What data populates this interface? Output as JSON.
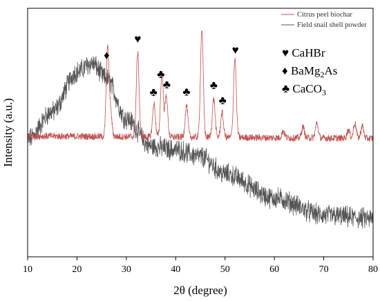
{
  "chart_data": {
    "type": "line",
    "xlabel": "2θ (degree)",
    "ylabel": "Intensity (a.u.)",
    "xlim": [
      10,
      80
    ],
    "xticks": [
      "10",
      "20",
      "30",
      "40",
      "50",
      "60",
      "70",
      "80"
    ],
    "y_ticks_shown": false,
    "series": [
      {
        "name": "Citrus peel biochar",
        "color": "#c0504d",
        "baseline": 175,
        "peaks": [
          {
            "x": 26.2,
            "height": 126
          },
          {
            "x": 26.8,
            "height": 35
          },
          {
            "x": 32.3,
            "height": 122
          },
          {
            "x": 35.6,
            "height": 48
          },
          {
            "x": 37.2,
            "height": 92
          },
          {
            "x": 38.1,
            "height": 60
          },
          {
            "x": 42.2,
            "height": 46
          },
          {
            "x": 45.3,
            "height": 157
          },
          {
            "x": 47.7,
            "height": 56
          },
          {
            "x": 49.4,
            "height": 36
          },
          {
            "x": 52.0,
            "height": 114
          },
          {
            "x": 61.8,
            "height": 10
          },
          {
            "x": 65.8,
            "height": 16
          },
          {
            "x": 68.6,
            "height": 22
          },
          {
            "x": 75.0,
            "height": 12
          },
          {
            "x": 76.3,
            "height": 22
          },
          {
            "x": 77.8,
            "height": 18
          }
        ]
      },
      {
        "name": "Field snail shell powder",
        "color": "#555555",
        "profile": [
          {
            "x": 10,
            "y": 170
          },
          {
            "x": 15,
            "y": 210
          },
          {
            "x": 20,
            "y": 268
          },
          {
            "x": 23,
            "y": 280
          },
          {
            "x": 26,
            "y": 258
          },
          {
            "x": 30,
            "y": 200
          },
          {
            "x": 35,
            "y": 160
          },
          {
            "x": 40,
            "y": 155
          },
          {
            "x": 45,
            "y": 145
          },
          {
            "x": 50,
            "y": 120
          },
          {
            "x": 60,
            "y": 85
          },
          {
            "x": 70,
            "y": 60
          },
          {
            "x": 80,
            "y": 55
          }
        ]
      }
    ],
    "legend_position": "top-right",
    "phase_key": [
      {
        "symbol": "♥",
        "label": "CaHBr"
      },
      {
        "symbol": "♦",
        "label": "BaMg",
        "sub": "2",
        "suffix": "As"
      },
      {
        "symbol": "♣",
        "label": "CaCO",
        "sub": "3",
        "suffix": ""
      }
    ],
    "peak_markers": [
      {
        "x": 26.0,
        "symbol": "♦"
      },
      {
        "x": 32.3,
        "symbol": "♥"
      },
      {
        "x": 35.5,
        "symbol": "♣"
      },
      {
        "x": 37.0,
        "symbol": "♣"
      },
      {
        "x": 38.2,
        "symbol": "♣"
      },
      {
        "x": 42.2,
        "symbol": "♣"
      },
      {
        "x": 47.7,
        "symbol": "♣"
      },
      {
        "x": 49.5,
        "symbol": "♣"
      },
      {
        "x": 52.1,
        "symbol": "♥"
      }
    ]
  }
}
